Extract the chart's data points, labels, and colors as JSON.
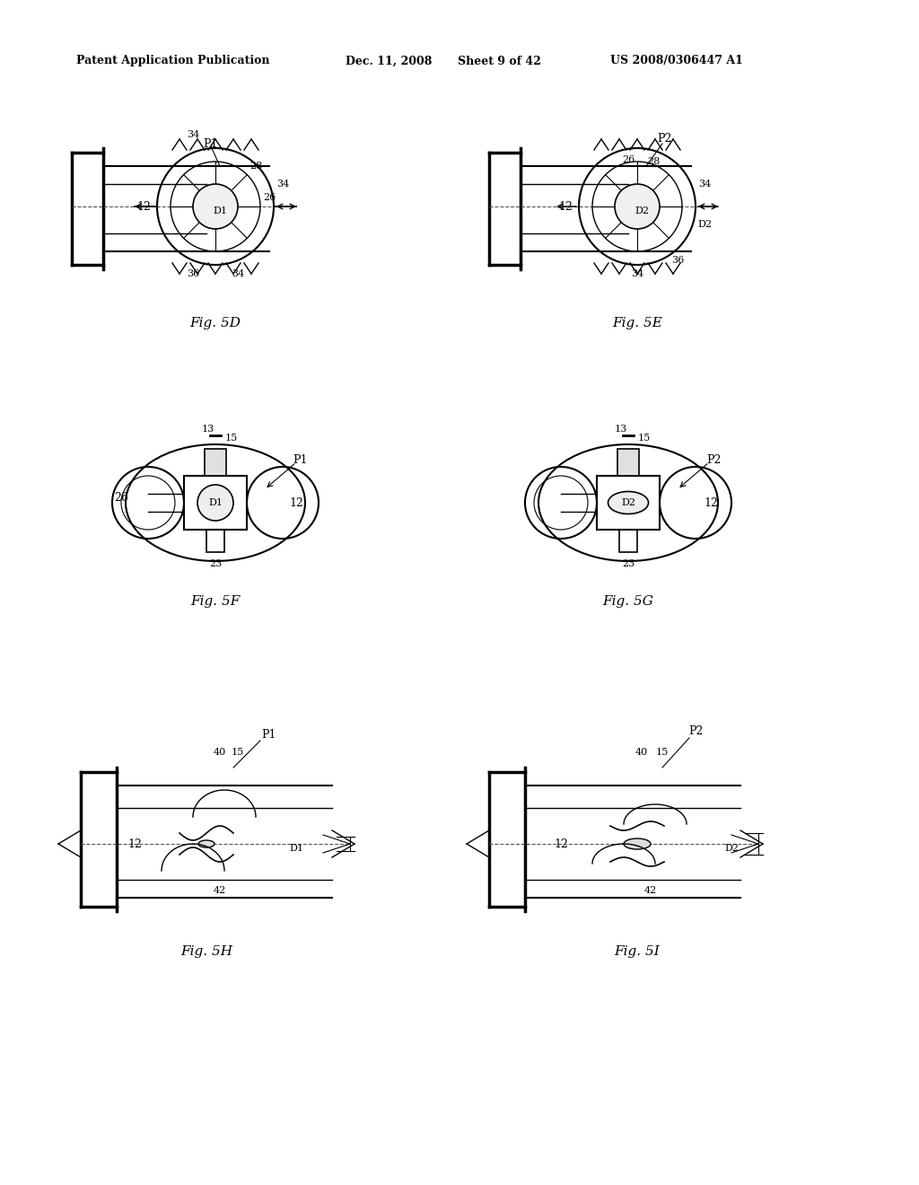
{
  "background_color": "#ffffff",
  "header_text": "Patent Application Publication",
  "header_date": "Dec. 11, 2008",
  "header_sheet": "Sheet 9 of 42",
  "header_patent": "US 2008/0306447 A1",
  "figures": [
    "Fig. 5D",
    "Fig. 5E",
    "Fig. 5F",
    "Fig. 5G",
    "Fig. 5H",
    "Fig. 5I"
  ]
}
